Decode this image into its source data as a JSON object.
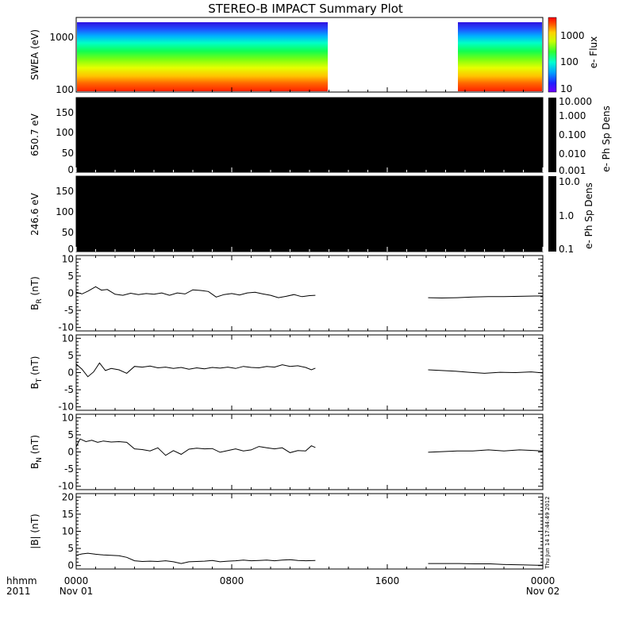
{
  "chart_data": {
    "title": "STEREO-B IMPACT Summary Plot",
    "type": "line",
    "x_ticks": [
      "0000",
      "0800",
      "1600",
      "0000"
    ],
    "x_tick_hours": [
      0,
      8,
      16,
      24
    ],
    "x_dates": [
      "Nov 01",
      "Nov 02"
    ],
    "x_prefix": [
      "hhmm",
      "2011"
    ],
    "timestamp": "Thu Jun 14 17:44:49 2012",
    "panels": [
      {
        "type": "heatmap",
        "ylabel": "SWEA (eV)",
        "y_ticks": [
          "1000",
          "100"
        ],
        "ylim": [
          100,
          2000
        ],
        "colorbar_label": "e- Flux",
        "colorbar_ticks": [
          "1000",
          "100",
          "10"
        ],
        "data_gap_hours": [
          12.3,
          18.1
        ]
      },
      {
        "type": "heatmap",
        "ylabel": "650.7 eV",
        "y_ticks": [
          "0",
          "50",
          "100",
          "150"
        ],
        "ylim": [
          0,
          180
        ],
        "colorbar_label": "e- Ph Sp Dens",
        "colorbar_ticks": [
          "10.000",
          "1.000",
          "0.100",
          "0.010",
          "0.001"
        ]
      },
      {
        "type": "heatmap",
        "ylabel": "246.6 eV",
        "y_ticks": [
          "0",
          "50",
          "100",
          "150"
        ],
        "ylim": [
          0,
          180
        ],
        "colorbar_label": "e- Ph Sp Dens",
        "colorbar_ticks": [
          "10.0",
          "1.0",
          "0.1"
        ]
      },
      {
        "type": "line",
        "ylabel": "B",
        "ylabel_sub": "R",
        "ylabel_unit": "(nT)",
        "y_ticks": [
          "-10",
          "-5",
          "0",
          "5",
          "10"
        ],
        "ylim": [
          -11,
          11
        ],
        "segments": [
          {
            "x": [
              0,
              0.3,
              0.6,
              1.0,
              1.3,
              1.6,
              2.0,
              2.4,
              2.8,
              3.2,
              3.6,
              4.0,
              4.4,
              4.8,
              5.2,
              5.6,
              6.0,
              6.4,
              6.8,
              7.2,
              7.6,
              8.0,
              8.4,
              8.8,
              9.2,
              9.6,
              10.0,
              10.4,
              10.8,
              11.2,
              11.6,
              12.0,
              12.3
            ],
            "y": [
              0.3,
              -0.2,
              0.6,
              1.9,
              0.9,
              1.1,
              -0.3,
              -0.6,
              0,
              -0.4,
              -0.1,
              -0.3,
              0.1,
              -0.6,
              0.1,
              -0.2,
              1.0,
              0.8,
              0.5,
              -1.1,
              -0.4,
              -0.1,
              -0.5,
              0.1,
              0.3,
              -0.2,
              -0.6,
              -1.3,
              -0.9,
              -0.4,
              -1.0,
              -0.7,
              -0.6
            ]
          },
          {
            "x": [
              18.1,
              18.8,
              19.6,
              20.4,
              21.2,
              22.0,
              22.8,
              23.6,
              24.0
            ],
            "y": [
              -1.3,
              -1.4,
              -1.3,
              -1.1,
              -1.0,
              -1.0,
              -0.9,
              -0.8,
              -0.8
            ]
          }
        ]
      },
      {
        "type": "line",
        "ylabel": "B",
        "ylabel_sub": "T",
        "ylabel_unit": "(nT)",
        "y_ticks": [
          "-10",
          "-5",
          "0",
          "5",
          "10"
        ],
        "ylim": [
          -11,
          11
        ],
        "segments": [
          {
            "x": [
              0,
              0.3,
              0.6,
              0.9,
              1.2,
              1.5,
              1.8,
              2.2,
              2.6,
              3.0,
              3.4,
              3.8,
              4.2,
              4.6,
              5.0,
              5.4,
              5.8,
              6.2,
              6.6,
              7.0,
              7.4,
              7.8,
              8.2,
              8.6,
              9.0,
              9.4,
              9.8,
              10.2,
              10.6,
              11.0,
              11.4,
              11.8,
              12.1,
              12.3
            ],
            "y": [
              2.5,
              1.0,
              -1.2,
              0.2,
              2.8,
              0.6,
              1.2,
              0.8,
              -0.2,
              1.8,
              1.6,
              1.9,
              1.4,
              1.6,
              1.2,
              1.5,
              1.0,
              1.4,
              1.1,
              1.5,
              1.3,
              1.6,
              1.2,
              1.8,
              1.5,
              1.4,
              1.8,
              1.6,
              2.3,
              1.8,
              2.0,
              1.5,
              0.8,
              1.3
            ]
          },
          {
            "x": [
              18.1,
              18.8,
              19.5,
              20.2,
              21.0,
              21.8,
              22.6,
              23.4,
              24.0
            ],
            "y": [
              0.8,
              0.6,
              0.4,
              0.1,
              -0.2,
              0.1,
              0.0,
              0.2,
              -0.1
            ]
          }
        ]
      },
      {
        "type": "line",
        "ylabel": "B",
        "ylabel_sub": "N",
        "ylabel_unit": "(nT)",
        "y_ticks": [
          "-10",
          "-5",
          "0",
          "5",
          "10"
        ],
        "ylim": [
          -11,
          11
        ],
        "segments": [
          {
            "x": [
              0,
              0.2,
              0.5,
              0.8,
              1.1,
              1.4,
              1.8,
              2.2,
              2.6,
              3.0,
              3.4,
              3.8,
              4.2,
              4.6,
              5.0,
              5.4,
              5.8,
              6.2,
              6.6,
              7.0,
              7.4,
              7.8,
              8.2,
              8.6,
              9.0,
              9.4,
              9.8,
              10.2,
              10.6,
              11.0,
              11.4,
              11.8,
              12.1,
              12.3
            ],
            "y": [
              1.5,
              3.8,
              3.0,
              3.4,
              2.8,
              3.2,
              2.9,
              3.0,
              2.8,
              0.9,
              0.7,
              0.3,
              1.2,
              -1.0,
              0.4,
              -0.7,
              0.8,
              1.1,
              0.9,
              1.0,
              -0.1,
              0.4,
              0.9,
              0.3,
              0.6,
              1.6,
              1.2,
              0.9,
              1.2,
              -0.2,
              0.4,
              0.3,
              1.8,
              1.3
            ]
          },
          {
            "x": [
              18.1,
              18.8,
              19.6,
              20.4,
              21.2,
              22.0,
              22.8,
              23.6,
              24.0
            ],
            "y": [
              -0.1,
              0.1,
              0.3,
              0.3,
              0.6,
              0.3,
              0.6,
              0.4,
              0.3
            ]
          }
        ]
      },
      {
        "type": "line",
        "ylabel": "|B|",
        "ylabel_unit": "(nT)",
        "y_ticks": [
          "0",
          "5",
          "10",
          "15",
          "20"
        ],
        "ylim": [
          -1,
          21
        ],
        "segments": [
          {
            "x": [
              0,
              0.3,
              0.6,
              1.0,
              1.4,
              1.8,
              2.2,
              2.6,
              3.0,
              3.4,
              3.8,
              4.2,
              4.6,
              5.0,
              5.4,
              5.8,
              6.2,
              6.6,
              7.0,
              7.4,
              7.8,
              8.2,
              8.6,
              9.0,
              9.4,
              9.8,
              10.2,
              10.6,
              11.0,
              11.4,
              11.8,
              12.3
            ],
            "y": [
              3.0,
              3.4,
              3.6,
              3.3,
              3.1,
              3.0,
              2.9,
              2.4,
              1.4,
              1.2,
              1.3,
              1.2,
              1.4,
              1.1,
              0.6,
              1.1,
              1.2,
              1.3,
              1.5,
              1.1,
              1.3,
              1.4,
              1.6,
              1.4,
              1.5,
              1.6,
              1.4,
              1.6,
              1.7,
              1.5,
              1.4,
              1.5
            ]
          },
          {
            "x": [
              18.1,
              18.9,
              19.7,
              20.5,
              21.3,
              22.1,
              22.9,
              23.7,
              24.0
            ],
            "y": [
              0.6,
              0.6,
              0.6,
              0.5,
              0.5,
              0.3,
              0.2,
              0.1,
              0.1
            ]
          }
        ]
      }
    ]
  }
}
